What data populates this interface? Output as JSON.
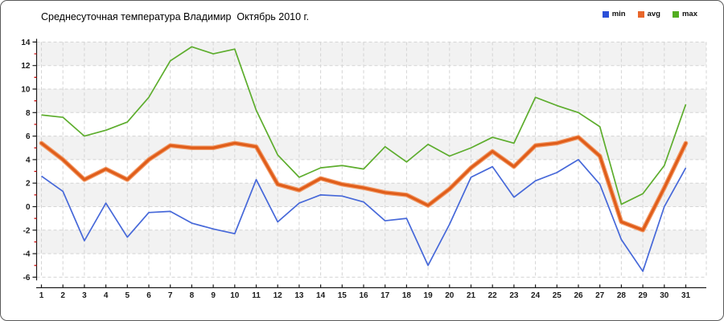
{
  "title": "Среднесуточная температура Владимир  Октябрь 2010 г.",
  "legend": [
    {
      "label": "min",
      "color": "#2b4fd8"
    },
    {
      "label": "avg",
      "color": "#e8662a"
    },
    {
      "label": "max",
      "color": "#52ad20"
    }
  ],
  "colors": {
    "min_line": "#4668d9",
    "avg_line": "#e05d1a",
    "avg_halo": "#f19a67",
    "max_line": "#5dad2d",
    "stripe": "#f2f2f2",
    "grid": "#d4d4d4",
    "axis": "#1a1a1a",
    "minor_tick": "#cc0000",
    "label": "#1a1a1a"
  },
  "chart_data": {
    "type": "line",
    "title": "Среднесуточная температура Владимир  Октябрь 2010 г.",
    "xlabel": "",
    "ylabel": "",
    "x": [
      1,
      2,
      3,
      4,
      5,
      6,
      7,
      8,
      9,
      10,
      11,
      12,
      13,
      14,
      15,
      16,
      17,
      18,
      19,
      20,
      21,
      22,
      23,
      24,
      25,
      26,
      27,
      28,
      29,
      30,
      31
    ],
    "yticks": [
      14,
      12,
      10,
      8,
      6,
      4,
      2,
      0,
      -2,
      -4,
      -6
    ],
    "ylim": [
      -6,
      14
    ],
    "grid": true,
    "legend_position": "top-right",
    "series": [
      {
        "name": "min",
        "values": [
          2.6,
          1.3,
          -2.9,
          0.3,
          -2.6,
          -0.5,
          -0.4,
          -1.4,
          -1.9,
          -2.3,
          2.3,
          -1.3,
          0.3,
          1.0,
          0.9,
          0.4,
          -1.2,
          -1.0,
          -5.0,
          -1.5,
          2.5,
          3.4,
          0.8,
          2.2,
          2.9,
          4.0,
          1.9,
          -2.8,
          -5.5,
          0.0,
          3.3
        ]
      },
      {
        "name": "avg",
        "values": [
          5.4,
          4.0,
          2.3,
          3.2,
          2.3,
          4.0,
          5.2,
          5.0,
          5.0,
          5.4,
          5.1,
          1.9,
          1.4,
          2.4,
          1.9,
          1.6,
          1.2,
          1.0,
          0.1,
          1.5,
          3.3,
          4.7,
          3.4,
          5.2,
          5.4,
          5.9,
          4.3,
          -1.3,
          -2.0,
          1.6,
          5.4
        ]
      },
      {
        "name": "max",
        "values": [
          7.8,
          7.6,
          6.0,
          6.5,
          7.2,
          9.3,
          12.4,
          13.6,
          13.0,
          13.4,
          8.2,
          4.4,
          2.5,
          3.3,
          3.5,
          3.2,
          5.1,
          3.8,
          5.3,
          4.3,
          5.0,
          5.9,
          5.4,
          9.3,
          8.6,
          8.0,
          6.8,
          0.2,
          1.1,
          3.5,
          8.7
        ]
      }
    ]
  }
}
